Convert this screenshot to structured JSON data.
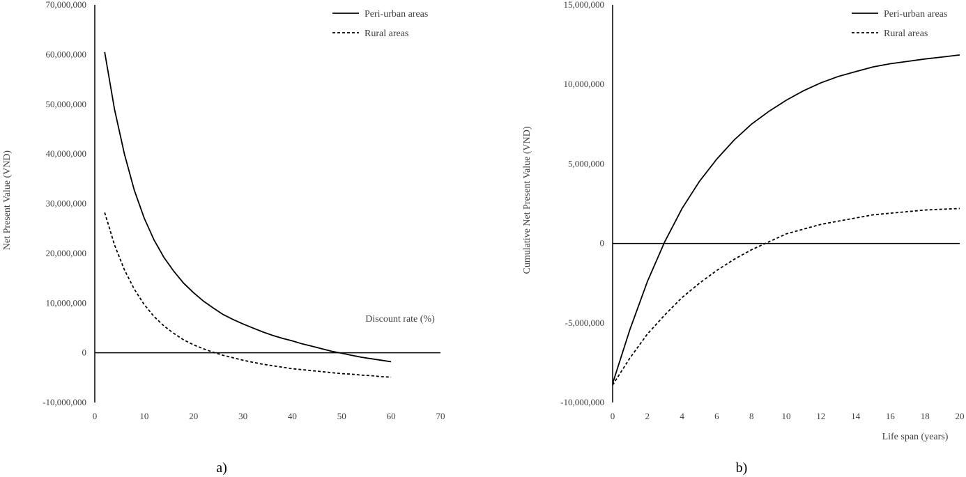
{
  "chart_data": [
    {
      "type": "line",
      "panel_label": "a)",
      "xlabel": "Discount rate (%)",
      "ylabel": "Net Present Value  (VND)",
      "xlim": [
        0,
        70
      ],
      "ylim": [
        -10000000,
        70000000
      ],
      "x_ticks": [
        0,
        10,
        20,
        30,
        40,
        50,
        60,
        70
      ],
      "y_ticks": [
        -10000000,
        0,
        10000000,
        20000000,
        30000000,
        40000000,
        50000000,
        60000000,
        70000000
      ],
      "x_tick_labels": [
        "0",
        "10",
        "20",
        "30",
        "40",
        "50",
        "60",
        "70"
      ],
      "y_tick_labels": [
        "-10,000,000",
        "0",
        "10,000,000",
        "20,000,000",
        "30,000,000",
        "40,000,000",
        "50,000,000",
        "60,000,000",
        "70,000,000"
      ],
      "grid": false,
      "legend_position": "top-right",
      "series": [
        {
          "name": "Peri-urban areas",
          "style": "solid",
          "x": [
            2,
            4,
            6,
            8,
            10,
            12,
            14,
            16,
            18,
            20,
            22,
            24,
            26,
            28,
            30,
            32,
            34,
            36,
            38,
            40,
            42,
            44,
            46,
            48,
            50,
            52,
            54,
            56,
            58,
            60
          ],
          "y": [
            60500000,
            49000000,
            40000000,
            32700000,
            27100000,
            22700000,
            19200000,
            16400000,
            14000000,
            12100000,
            10400000,
            9000000,
            7700000,
            6700000,
            5800000,
            5000000,
            4200000,
            3500000,
            2900000,
            2400000,
            1800000,
            1300000,
            800000,
            300000,
            -100000,
            -500000,
            -900000,
            -1200000,
            -1500000,
            -1800000
          ]
        },
        {
          "name": "Rural areas",
          "style": "dashed",
          "x": [
            2,
            4,
            6,
            8,
            10,
            12,
            14,
            16,
            18,
            20,
            22,
            24,
            26,
            28,
            30,
            32,
            34,
            36,
            38,
            40,
            42,
            44,
            46,
            48,
            50,
            52,
            54,
            56,
            58,
            60
          ],
          "y": [
            28200000,
            21700000,
            16700000,
            12800000,
            9700000,
            7300000,
            5400000,
            3900000,
            2600000,
            1600000,
            800000,
            100000,
            -500000,
            -1000000,
            -1500000,
            -1900000,
            -2300000,
            -2600000,
            -2900000,
            -3200000,
            -3400000,
            -3600000,
            -3800000,
            -4000000,
            -4200000,
            -4300000,
            -4500000,
            -4600000,
            -4800000,
            -4900000
          ]
        }
      ]
    },
    {
      "type": "line",
      "panel_label": "b)",
      "xlabel": "Life span (years)",
      "ylabel": "Cumulative Net Present Value  (VND)",
      "xlim": [
        0,
        20
      ],
      "ylim": [
        -10000000,
        15000000
      ],
      "x_ticks": [
        0,
        2,
        4,
        6,
        8,
        10,
        12,
        14,
        16,
        18,
        20
      ],
      "y_ticks": [
        -10000000,
        -5000000,
        0,
        5000000,
        10000000,
        15000000
      ],
      "x_tick_labels": [
        "0",
        "2",
        "4",
        "6",
        "8",
        "10",
        "12",
        "14",
        "16",
        "18",
        "20"
      ],
      "y_tick_labels": [
        "-10,000,000",
        "-5,000,000",
        "0",
        "5,000,000",
        "10,000,000",
        "15,000,000"
      ],
      "grid": false,
      "legend_position": "top-right",
      "series": [
        {
          "name": "Peri-urban areas",
          "style": "solid",
          "x": [
            0,
            1,
            2,
            3,
            4,
            5,
            6,
            7,
            8,
            9,
            10,
            11,
            12,
            13,
            14,
            15,
            16,
            17,
            18,
            19,
            20
          ],
          "y": [
            -8800000,
            -5400000,
            -2400000,
            100000,
            2200000,
            3900000,
            5300000,
            6500000,
            7500000,
            8300000,
            9000000,
            9600000,
            10100000,
            10500000,
            10800000,
            11100000,
            11300000,
            11450000,
            11600000,
            11720000,
            11850000
          ]
        },
        {
          "name": "Rural areas",
          "style": "dashed",
          "x": [
            0,
            1,
            2,
            3,
            4,
            5,
            6,
            7,
            8,
            9,
            10,
            11,
            12,
            13,
            14,
            15,
            16,
            17,
            18,
            19,
            20
          ],
          "y": [
            -8900000,
            -7200000,
            -5700000,
            -4500000,
            -3400000,
            -2500000,
            -1700000,
            -1000000,
            -400000,
            100000,
            600000,
            900000,
            1200000,
            1400000,
            1600000,
            1800000,
            1900000,
            2000000,
            2100000,
            2150000,
            2200000
          ]
        }
      ]
    }
  ]
}
